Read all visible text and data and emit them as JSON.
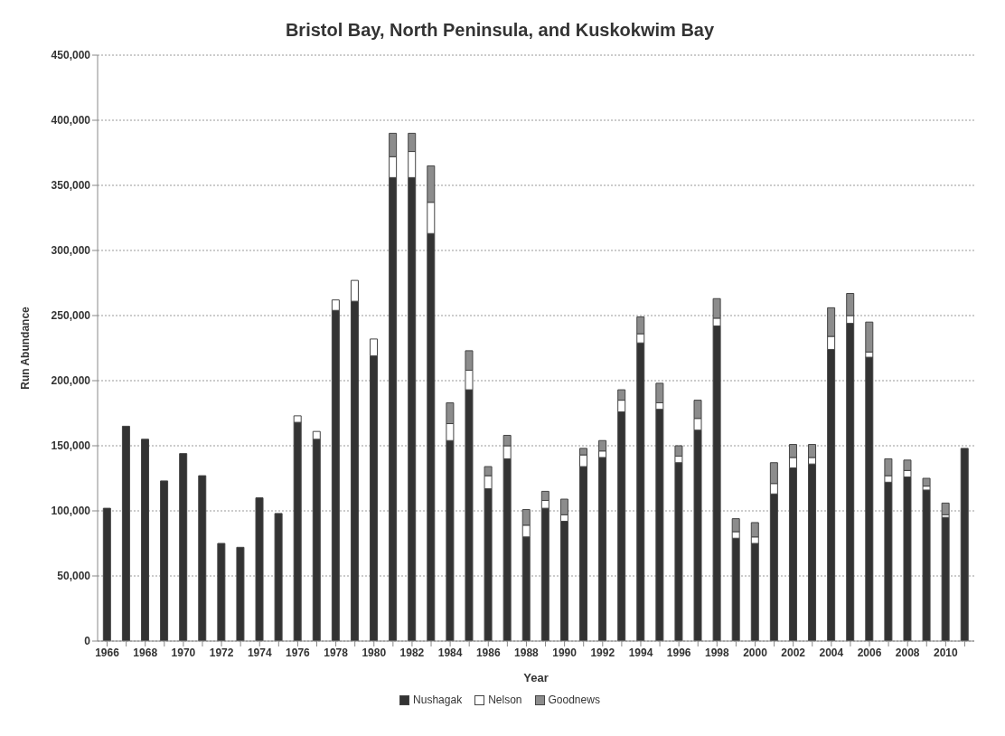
{
  "chart_data": {
    "type": "bar",
    "title": "Bristol Bay, North Peninsula, and Kuskokwim Bay",
    "xlabel": "Year",
    "ylabel": "Run Abundance",
    "categories": [
      "1966",
      null,
      "1968",
      null,
      "1970",
      null,
      "1972",
      null,
      "1974",
      null,
      "1976",
      null,
      "1978",
      null,
      "1980",
      null,
      "1982",
      null,
      "1984",
      null,
      "1986",
      null,
      "1988",
      null,
      "1990",
      null,
      "1992",
      null,
      "1994",
      null,
      "1996",
      null,
      "1998",
      null,
      "2000",
      null,
      "2002",
      null,
      "2004",
      null,
      "2006",
      null,
      "2008",
      null,
      "2010",
      null
    ],
    "stacked": true,
    "series": [
      {
        "name": "Nushagak",
        "color": "#333333",
        "values": [
          102000,
          165000,
          155000,
          123000,
          144000,
          127000,
          75000,
          72000,
          110000,
          98000,
          168000,
          155000,
          254000,
          261000,
          219000,
          356000,
          356000,
          313000,
          154000,
          193000,
          117000,
          140000,
          80000,
          102000,
          92000,
          134000,
          141000,
          176000,
          229000,
          178000,
          137000,
          162000,
          242000,
          79000,
          75000,
          113000,
          133000,
          136000,
          224000,
          244000,
          218000,
          122000,
          126000,
          116000,
          95000,
          148000
        ]
      },
      {
        "name": "Nelson",
        "color": "#ffffff",
        "values": [
          null,
          null,
          null,
          null,
          null,
          null,
          null,
          null,
          null,
          null,
          5000,
          6000,
          8000,
          16000,
          13000,
          16000,
          20000,
          24000,
          13000,
          15000,
          10000,
          10000,
          9000,
          6000,
          5000,
          9000,
          5000,
          9000,
          7000,
          5000,
          5000,
          9000,
          6000,
          5000,
          5000,
          8000,
          8000,
          5000,
          10000,
          6000,
          4000,
          5000,
          5000,
          3000,
          2000,
          null
        ]
      },
      {
        "name": "Goodnews",
        "color": "#8c8c8c",
        "values": [
          null,
          null,
          null,
          null,
          null,
          null,
          null,
          null,
          null,
          null,
          null,
          null,
          null,
          null,
          null,
          18000,
          14000,
          28000,
          16000,
          15000,
          7000,
          8000,
          12000,
          7000,
          12000,
          5000,
          8000,
          8000,
          13000,
          15000,
          8000,
          14000,
          15000,
          10000,
          11000,
          16000,
          10000,
          10000,
          22000,
          17000,
          23000,
          13000,
          8000,
          6000,
          9000,
          null
        ]
      }
    ],
    "ylim": [
      0,
      450000
    ],
    "yticks": [
      {
        "value": 0,
        "label": "0"
      },
      {
        "value": 50000,
        "label": "50,000"
      },
      {
        "value": 100000,
        "label": "100,000"
      },
      {
        "value": 150000,
        "label": "150,000"
      },
      {
        "value": 200000,
        "label": "200,000"
      },
      {
        "value": 250000,
        "label": "250,000"
      },
      {
        "value": 300000,
        "label": "300,000"
      },
      {
        "value": 350000,
        "label": "350,000"
      },
      {
        "value": 400000,
        "label": "400,000"
      },
      {
        "value": 450000,
        "label": "450,000"
      }
    ],
    "grid": "y",
    "legend": "bottom"
  }
}
